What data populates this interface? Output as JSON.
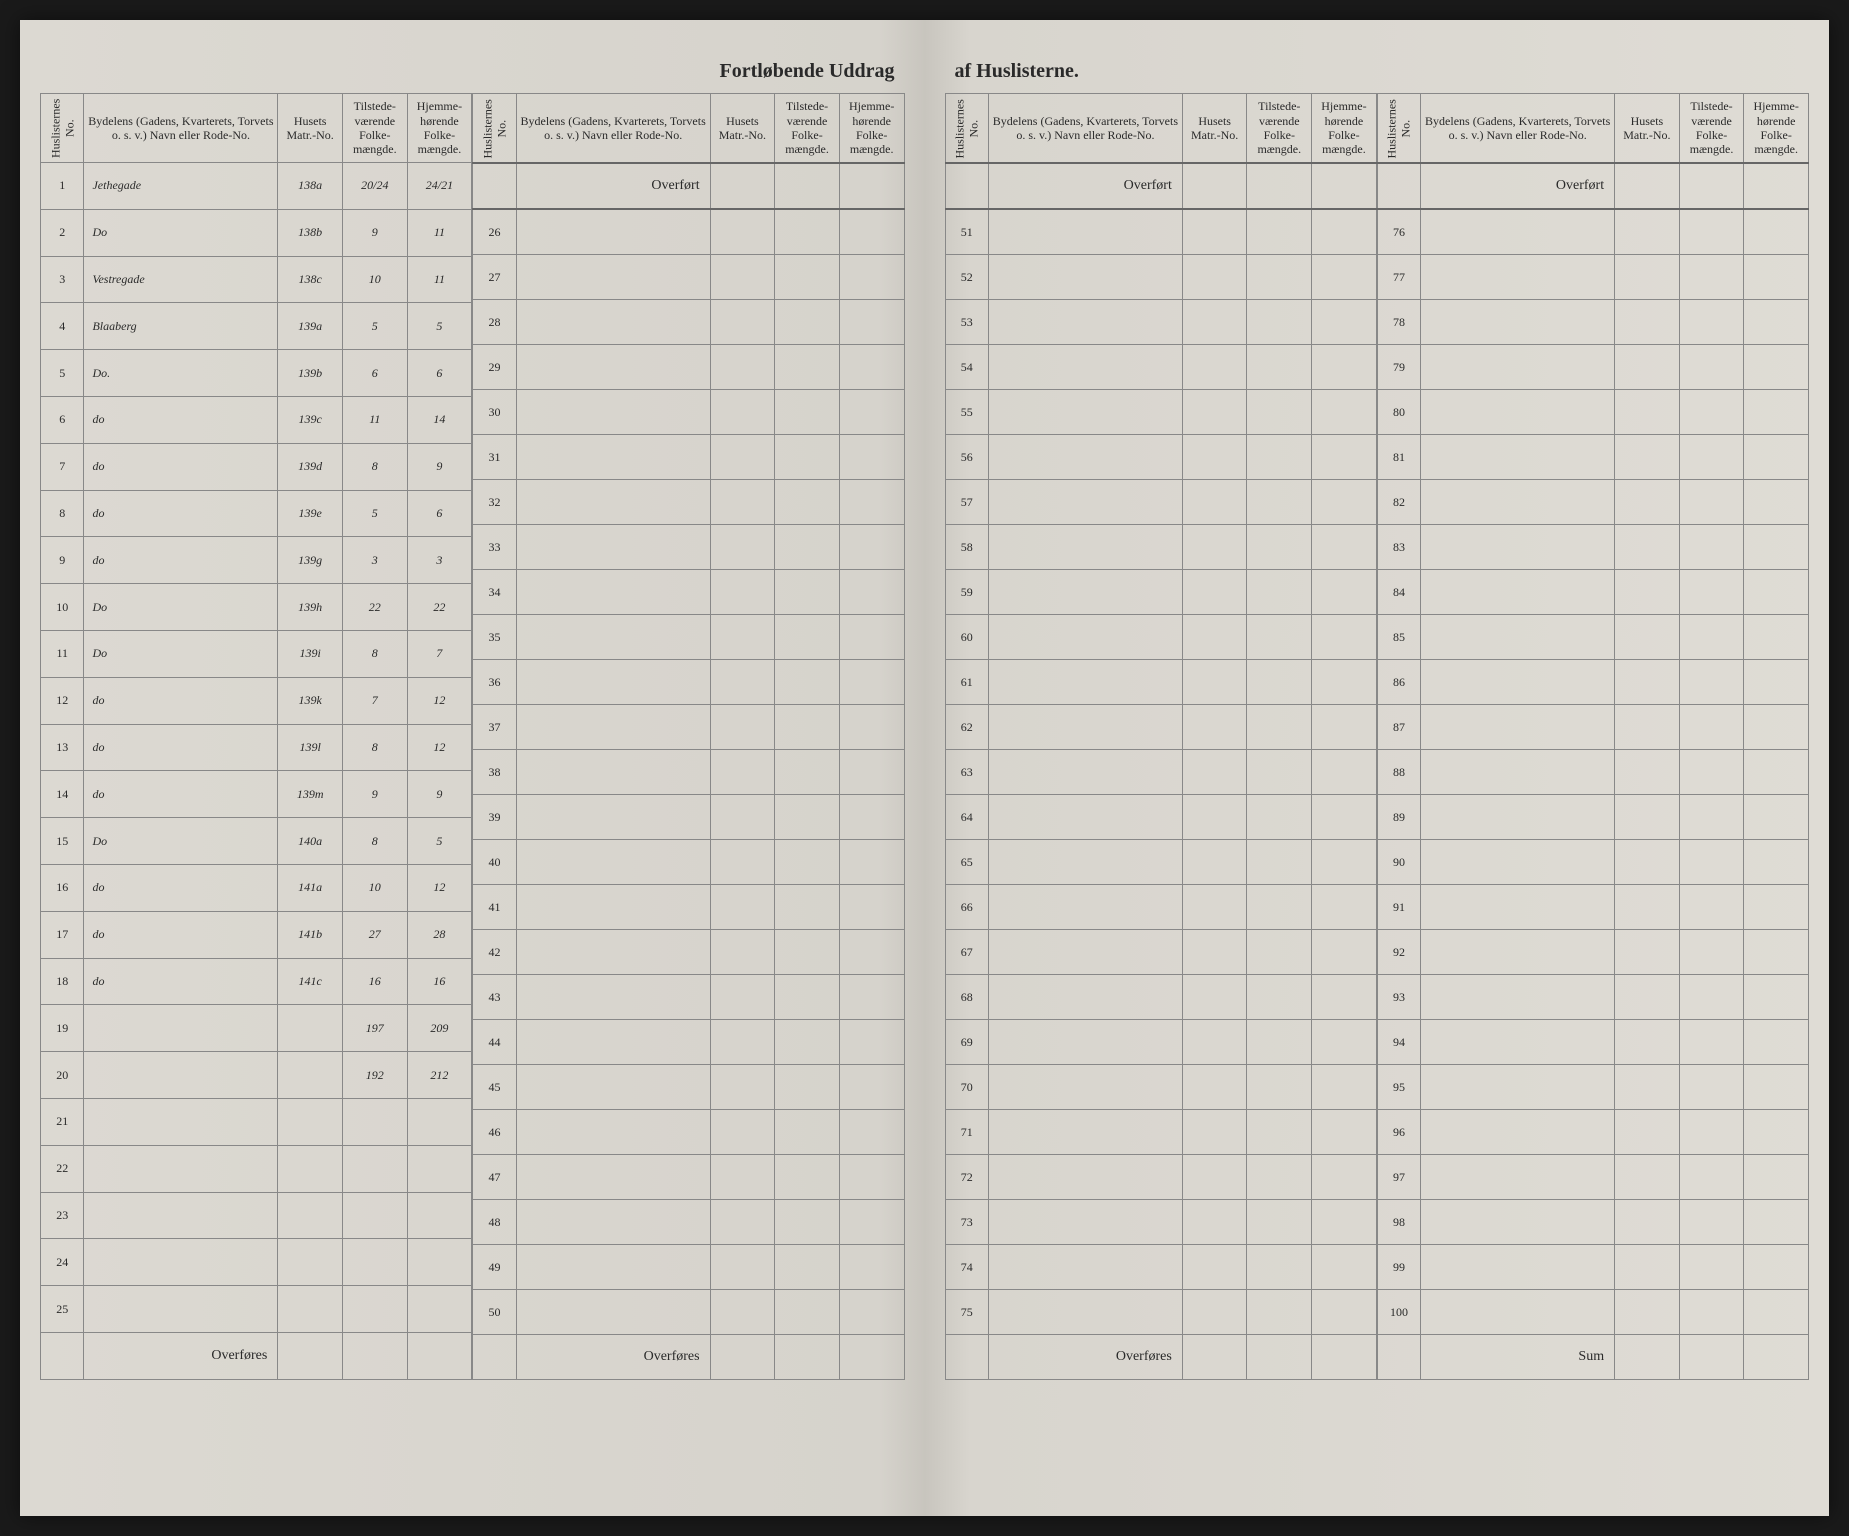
{
  "title_left": "Fortløbende Uddrag",
  "title_right": "af Huslisterne.",
  "headers": {
    "huslisternes_no": "Huslisternes No.",
    "bydelens": "Bydelens (Gadens, Kvarterets, Torvets o. s. v.) Navn eller Rode-No.",
    "husets_matr": "Husets Matr.-No.",
    "tilstede": "Tilstede-værende Folke-mængde.",
    "hjemme": "Hjemme-hørende Folke-mængde."
  },
  "overfort": "Overført",
  "overfores": "Overføres",
  "sum": "Sum",
  "colors": {
    "paper": "#d8d5ce",
    "border": "#888888",
    "text": "#2a2a2a",
    "handwriting": "#3a3a3a"
  },
  "left_panel_1": {
    "start": 1,
    "end": 25,
    "rows": [
      {
        "no": "1",
        "name": "Jethegade",
        "matr": "138a",
        "t": "20/24",
        "h": "24/21"
      },
      {
        "no": "2",
        "name": "Do",
        "matr": "138b",
        "t": "9",
        "h": "11"
      },
      {
        "no": "3",
        "name": "Vestregade",
        "matr": "138c",
        "t": "10",
        "h": "11"
      },
      {
        "no": "4",
        "name": "Blaaberg",
        "matr": "139a",
        "t": "5",
        "h": "5"
      },
      {
        "no": "5",
        "name": "Do.",
        "matr": "139b",
        "t": "6",
        "h": "6"
      },
      {
        "no": "6",
        "name": "do",
        "matr": "139c",
        "t": "11",
        "h": "14"
      },
      {
        "no": "7",
        "name": "do",
        "matr": "139d",
        "t": "8",
        "h": "9"
      },
      {
        "no": "8",
        "name": "do",
        "matr": "139e",
        "t": "5",
        "h": "6"
      },
      {
        "no": "9",
        "name": "do",
        "matr": "139g",
        "t": "3",
        "h": "3"
      },
      {
        "no": "10",
        "name": "Do",
        "matr": "139h",
        "t": "22",
        "h": "22"
      },
      {
        "no": "11",
        "name": "Do",
        "matr": "139i",
        "t": "8",
        "h": "7"
      },
      {
        "no": "12",
        "name": "do",
        "matr": "139k",
        "t": "7",
        "h": "12"
      },
      {
        "no": "13",
        "name": "do",
        "matr": "139l",
        "t": "8",
        "h": "12"
      },
      {
        "no": "14",
        "name": "do",
        "matr": "139m",
        "t": "9",
        "h": "9"
      },
      {
        "no": "15",
        "name": "Do",
        "matr": "140a",
        "t": "8",
        "h": "5"
      },
      {
        "no": "16",
        "name": "do",
        "matr": "141a",
        "t": "10",
        "h": "12"
      },
      {
        "no": "17",
        "name": "do",
        "matr": "141b",
        "t": "27",
        "h": "28"
      },
      {
        "no": "18",
        "name": "do",
        "matr": "141c",
        "t": "16",
        "h": "16"
      },
      {
        "no": "19",
        "name": "",
        "matr": "",
        "t": "197",
        "h": "209"
      },
      {
        "no": "20",
        "name": "",
        "matr": "",
        "t": "192",
        "h": "212"
      },
      {
        "no": "21",
        "name": "",
        "matr": "",
        "t": "",
        "h": ""
      },
      {
        "no": "22",
        "name": "",
        "matr": "",
        "t": "",
        "h": ""
      },
      {
        "no": "23",
        "name": "",
        "matr": "",
        "t": "",
        "h": ""
      },
      {
        "no": "24",
        "name": "",
        "matr": "",
        "t": "",
        "h": ""
      },
      {
        "no": "25",
        "name": "",
        "matr": "",
        "t": "",
        "h": ""
      }
    ]
  },
  "left_panel_2": {
    "start": 26,
    "end": 50
  },
  "right_panel_1": {
    "start": 51,
    "end": 75
  },
  "right_panel_2": {
    "start": 76,
    "end": 100
  }
}
